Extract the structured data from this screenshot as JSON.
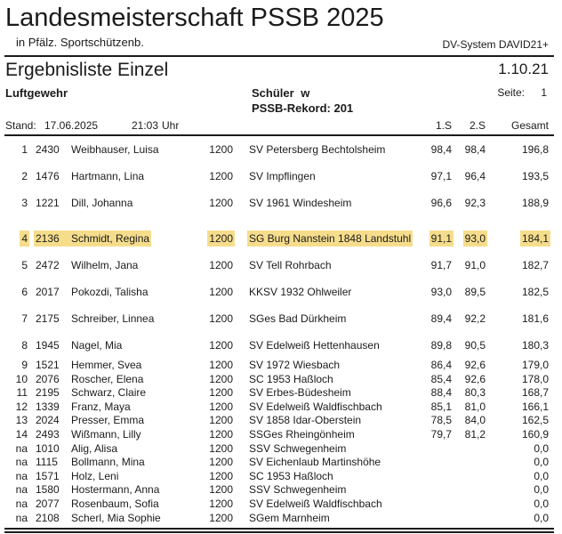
{
  "header": {
    "title": "Landesmeisterschaft PSSB 2025",
    "subtitle": "in Pfälz. Sportschützenb.",
    "dv_system": "DV-System DAVID21+"
  },
  "subheader": {
    "list_title": "Ergebnisliste Einzel",
    "class_code": "1.10.21",
    "discipline": "Luftgewehr",
    "class_name": "Schüler w",
    "record": "PSSB-Rekord: 201",
    "page_label": "Seite:",
    "page_number": "1",
    "stand_label": "Stand:",
    "stand_date": "17.06.2025",
    "stand_time": "21:03",
    "stand_time_suffix": "Uhr"
  },
  "highlight_color": "#f6dd8c",
  "table": {
    "columns": {
      "s1": "1.S",
      "s2": "2.S",
      "total": "Gesamt"
    },
    "rows": [
      {
        "rank": "1",
        "num": "2430",
        "name": "Weibhauser, Luisa",
        "code": "1200",
        "club": "SV Petersberg Bechtolsheim",
        "s1": "98,4",
        "s2": "98,4",
        "total": "196,8",
        "highlight": false
      },
      {
        "rank": "2",
        "num": "1476",
        "name": "Hartmann, Lina",
        "code": "1200",
        "club": "SV Impflingen",
        "s1": "97,1",
        "s2": "96,4",
        "total": "193,5",
        "highlight": false
      },
      {
        "rank": "3",
        "num": "1221",
        "name": "Dill, Johanna",
        "code": "1200",
        "club": "SV 1961 Windesheim",
        "s1": "96,6",
        "s2": "92,3",
        "total": "188,9",
        "highlight": false
      },
      {
        "rank": "4",
        "num": "2136",
        "name": "Schmidt, Regina",
        "code": "1200",
        "club": "SG Burg Nanstein 1848 Landstuhl",
        "s1": "91,1",
        "s2": "93,0",
        "total": "184,1",
        "highlight": true
      },
      {
        "rank": "5",
        "num": "2472",
        "name": "Wilhelm, Jana",
        "code": "1200",
        "club": "SV Tell Rohrbach",
        "s1": "91,7",
        "s2": "91,0",
        "total": "182,7",
        "highlight": false
      },
      {
        "rank": "6",
        "num": "2017",
        "name": "Pokozdi, Talisha",
        "code": "1200",
        "club": "KKSV 1932 Ohlweiler",
        "s1": "93,0",
        "s2": "89,5",
        "total": "182,5",
        "highlight": false
      },
      {
        "rank": "7",
        "num": "2175",
        "name": "Schreiber, Linnea",
        "code": "1200",
        "club": "SGes Bad Dürkheim",
        "s1": "89,4",
        "s2": "92,2",
        "total": "181,6",
        "highlight": false
      },
      {
        "rank": "8",
        "num": "1945",
        "name": "Nagel, Mia",
        "code": "1200",
        "club": "SV Edelweiß Hettenhausen",
        "s1": "89,8",
        "s2": "90,5",
        "total": "180,3",
        "highlight": false
      },
      {
        "rank": "9",
        "num": "1521",
        "name": "Hemmer, Svea",
        "code": "1200",
        "club": "SV 1972 Wiesbach",
        "s1": "86,4",
        "s2": "92,6",
        "total": "179,0",
        "highlight": false
      },
      {
        "rank": "10",
        "num": "2076",
        "name": "Roscher, Elena",
        "code": "1200",
        "club": "SC 1953 Haßloch",
        "s1": "85,4",
        "s2": "92,6",
        "total": "178,0",
        "highlight": false
      },
      {
        "rank": "11",
        "num": "2195",
        "name": "Schwarz, Claire",
        "code": "1200",
        "club": "SV Erbes-Büdesheim",
        "s1": "88,4",
        "s2": "80,3",
        "total": "168,7",
        "highlight": false
      },
      {
        "rank": "12",
        "num": "1339",
        "name": "Franz, Maya",
        "code": "1200",
        "club": "SV Edelweiß Waldfischbach",
        "s1": "85,1",
        "s2": "81,0",
        "total": "166,1",
        "highlight": false
      },
      {
        "rank": "13",
        "num": "2024",
        "name": "Presser, Emma",
        "code": "1200",
        "club": "SV 1858 Idar-Oberstein",
        "s1": "78,5",
        "s2": "84,0",
        "total": "162,5",
        "highlight": false
      },
      {
        "rank": "14",
        "num": "2493",
        "name": "Wißmann, Lilly",
        "code": "1200",
        "club": "SSGes Rheingönheim",
        "s1": "79,7",
        "s2": "81,2",
        "total": "160,9",
        "highlight": false
      },
      {
        "rank": "na",
        "num": "1010",
        "name": "Alig, Alisa",
        "code": "1200",
        "club": "SSV Schwegenheim",
        "s1": "",
        "s2": "",
        "total": "0,0",
        "highlight": false
      },
      {
        "rank": "na",
        "num": "1115",
        "name": "Bollmann, Mina",
        "code": "1200",
        "club": "SV Eichenlaub Martinshöhe",
        "s1": "",
        "s2": "",
        "total": "0,0",
        "highlight": false
      },
      {
        "rank": "na",
        "num": "1571",
        "name": "Holz, Leni",
        "code": "1200",
        "club": "SC 1953 Haßloch",
        "s1": "",
        "s2": "",
        "total": "0,0",
        "highlight": false
      },
      {
        "rank": "na",
        "num": "1580",
        "name": "Hostermann, Anna",
        "code": "1200",
        "club": "SSV Schwegenheim",
        "s1": "",
        "s2": "",
        "total": "0,0",
        "highlight": false
      },
      {
        "rank": "na",
        "num": "2077",
        "name": "Rosenbaum, Sofia",
        "code": "1200",
        "club": "SV Edelweiß Waldfischbach",
        "s1": "",
        "s2": "",
        "total": "0,0",
        "highlight": false
      },
      {
        "rank": "na",
        "num": "2108",
        "name": "Scherl, Mia Sophie",
        "code": "1200",
        "club": "SGem Marnheim",
        "s1": "",
        "s2": "",
        "total": "0,0",
        "highlight": false
      }
    ]
  }
}
